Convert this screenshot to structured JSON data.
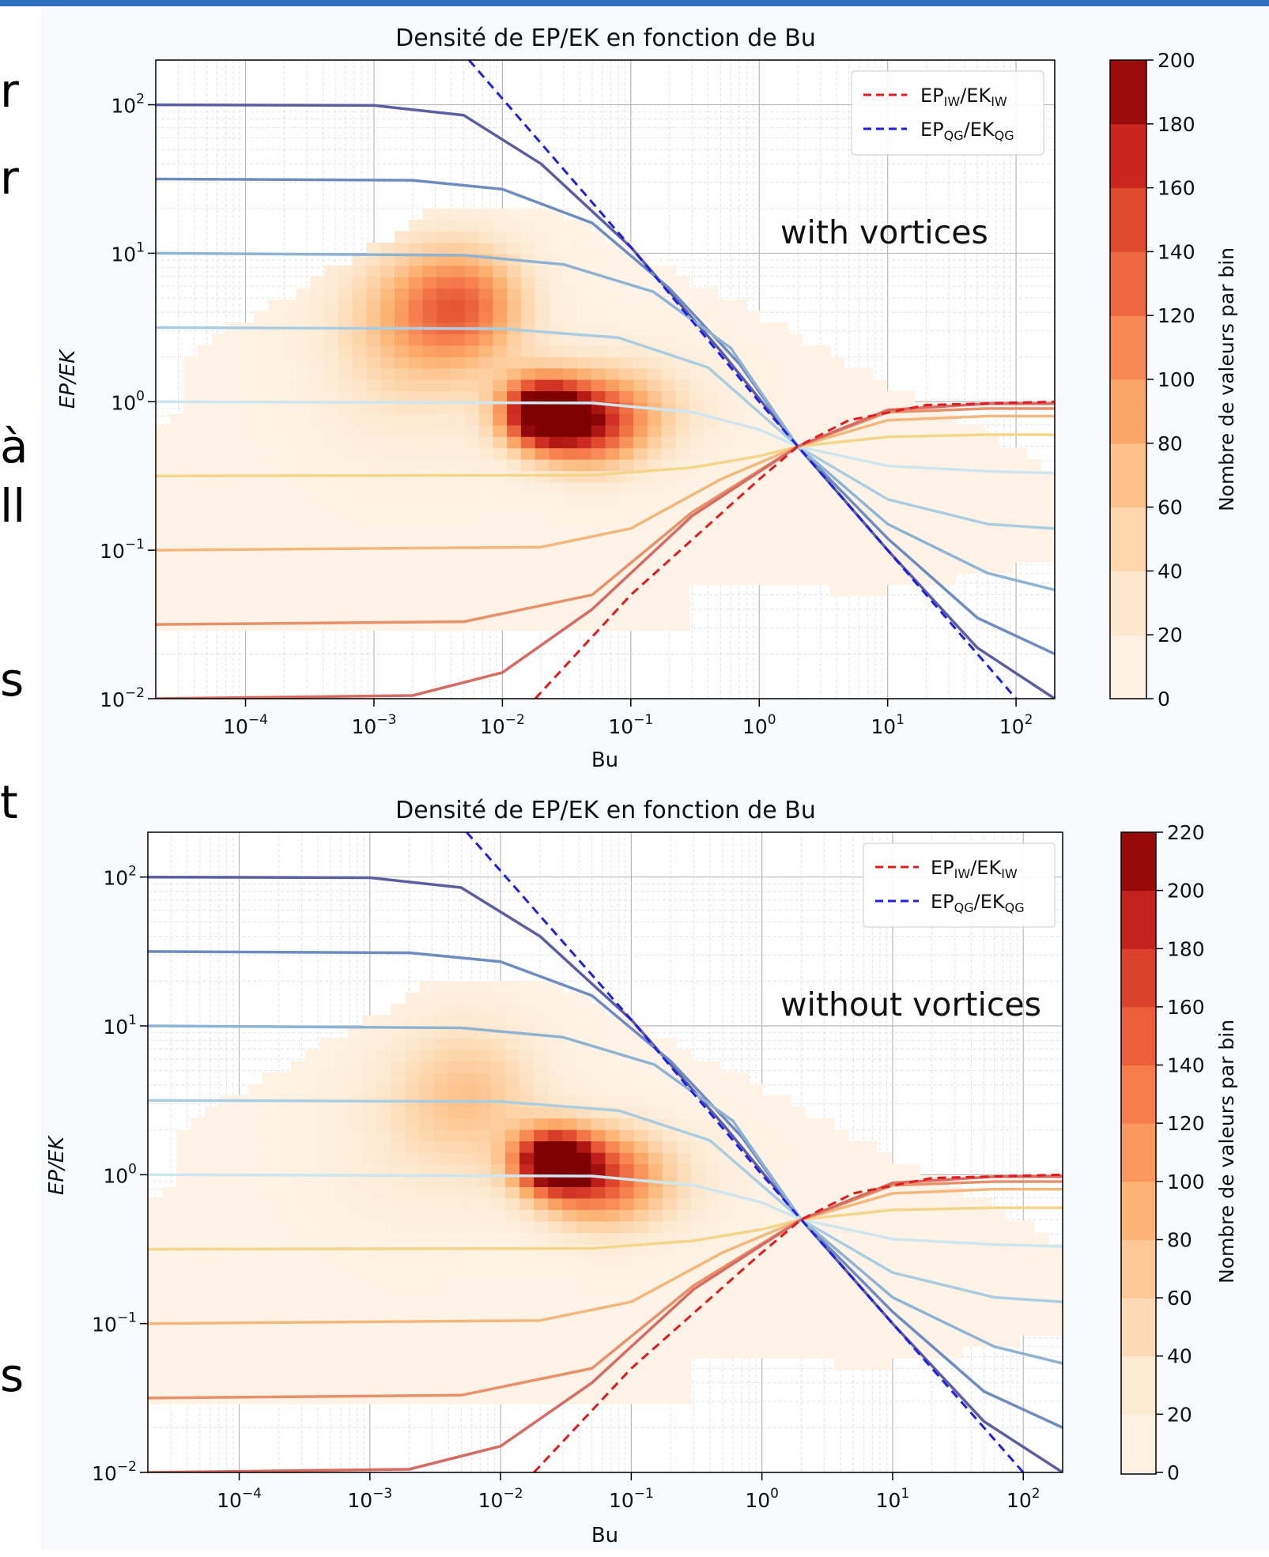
{
  "page": {
    "side_letters": [
      "r",
      "r",
      "à",
      "ll",
      "s",
      "t",
      "s"
    ]
  },
  "chart_data": [
    {
      "type": "heatmap",
      "title": "Densité de EP/EK en fonction de Bu",
      "xlabel": "Bu",
      "ylabel": "EP/EK",
      "xscale": "log",
      "yscale": "log",
      "xlim": [
        2e-05,
        200
      ],
      "ylim": [
        0.01,
        200
      ],
      "grid": true,
      "x_ticks": [
        "10^-4",
        "10^-3",
        "10^-2",
        "10^-1",
        "10^0",
        "10^1",
        "10^2"
      ],
      "y_ticks": [
        "10^-2",
        "10^-1",
        "10^0",
        "10^1",
        "10^2"
      ],
      "annotation": "with vortices",
      "legend": {
        "placement": "top-right",
        "entries": [
          {
            "base": "EP",
            "sub": "IW",
            "sep": "/",
            "base2": "EK",
            "sub2": "IW",
            "color": "#e41a1c",
            "style": "dashed"
          },
          {
            "base": "EP",
            "sub": "QG",
            "sep": "/",
            "base2": "EK",
            "sub2": "QG",
            "color": "#1f1fe6",
            "style": "dashed"
          }
        ]
      },
      "colorbar": {
        "label": "Nombre de valeurs par bin",
        "max": 200,
        "ticks": [
          0,
          20,
          40,
          60,
          80,
          100,
          120,
          140,
          160,
          180,
          200
        ]
      },
      "reference_lines": [
        {
          "name": "EP_IW/EK_IW",
          "color": "#e41a1c",
          "points": [
            [
              0.018,
              0.01
            ],
            [
              0.1,
              0.05
            ],
            [
              1,
              0.3
            ],
            [
              2,
              0.5
            ],
            [
              5,
              0.75
            ],
            [
              20,
              0.95
            ],
            [
              200,
              1.0
            ]
          ]
        },
        {
          "name": "EP_QG/EK_QG",
          "color": "#1f1fe6",
          "points": [
            [
              0.0055,
              200
            ],
            [
              0.1,
              11
            ],
            [
              1,
              1.0
            ],
            [
              2,
              0.5
            ],
            [
              10,
              0.1
            ],
            [
              100,
              0.01
            ]
          ]
        }
      ],
      "curves": [
        {
          "color": "#5b5ea0",
          "points": [
            [
              2e-05,
              100
            ],
            [
              0.001,
              99
            ],
            [
              0.005,
              85
            ],
            [
              0.02,
              40
            ],
            [
              0.1,
              11
            ],
            [
              0.5,
              2.2
            ],
            [
              2,
              0.5
            ],
            [
              10,
              0.1
            ],
            [
              50,
              0.022
            ],
            [
              200,
              0.01
            ]
          ]
        },
        {
          "color": "#6d8cc0",
          "points": [
            [
              2e-05,
              31.6
            ],
            [
              0.002,
              31
            ],
            [
              0.01,
              27
            ],
            [
              0.05,
              16
            ],
            [
              0.2,
              5.8
            ],
            [
              0.7,
              1.8
            ],
            [
              2,
              0.5
            ],
            [
              10,
              0.12
            ],
            [
              50,
              0.035
            ],
            [
              200,
              0.02
            ]
          ]
        },
        {
          "color": "#8eb3d3",
          "points": [
            [
              2e-05,
              10
            ],
            [
              0.005,
              9.7
            ],
            [
              0.03,
              8.4
            ],
            [
              0.15,
              5.5
            ],
            [
              0.6,
              2.3
            ],
            [
              2,
              0.5
            ],
            [
              10,
              0.15
            ],
            [
              60,
              0.07
            ],
            [
              200,
              0.054
            ]
          ]
        },
        {
          "color": "#aacde2",
          "points": [
            [
              2e-05,
              3.16
            ],
            [
              0.01,
              3.1
            ],
            [
              0.08,
              2.7
            ],
            [
              0.4,
              1.7
            ],
            [
              2,
              0.5
            ],
            [
              10,
              0.22
            ],
            [
              60,
              0.15
            ],
            [
              200,
              0.14
            ]
          ]
        },
        {
          "color": "#cde6ef",
          "points": [
            [
              2e-05,
              1.0
            ],
            [
              0.05,
              0.98
            ],
            [
              0.3,
              0.85
            ],
            [
              1,
              0.65
            ],
            [
              2,
              0.5
            ],
            [
              10,
              0.37
            ],
            [
              60,
              0.34
            ],
            [
              200,
              0.33
            ]
          ]
        },
        {
          "color": "#f4d58a",
          "points": [
            [
              2e-05,
              0.316
            ],
            [
              0.05,
              0.32
            ],
            [
              0.3,
              0.36
            ],
            [
              1,
              0.43
            ],
            [
              2,
              0.5
            ],
            [
              10,
              0.58
            ],
            [
              60,
              0.6
            ],
            [
              200,
              0.6
            ]
          ]
        },
        {
          "color": "#f3b77b",
          "points": [
            [
              2e-05,
              0.1
            ],
            [
              0.02,
              0.105
            ],
            [
              0.1,
              0.14
            ],
            [
              0.5,
              0.3
            ],
            [
              2,
              0.5
            ],
            [
              10,
              0.75
            ],
            [
              60,
              0.8
            ],
            [
              200,
              0.8
            ]
          ]
        },
        {
          "color": "#e89069",
          "points": [
            [
              2e-05,
              0.0316
            ],
            [
              0.005,
              0.033
            ],
            [
              0.05,
              0.05
            ],
            [
              0.3,
              0.18
            ],
            [
              2,
              0.5
            ],
            [
              10,
              0.85
            ],
            [
              60,
              0.9
            ],
            [
              200,
              0.9
            ]
          ]
        },
        {
          "color": "#d86a62",
          "points": [
            [
              2e-05,
              0.01
            ],
            [
              0.002,
              0.0105
            ],
            [
              0.01,
              0.015
            ],
            [
              0.05,
              0.04
            ],
            [
              0.3,
              0.17
            ],
            [
              2,
              0.5
            ],
            [
              10,
              0.88
            ],
            [
              60,
              0.97
            ],
            [
              200,
              0.97
            ]
          ]
        }
      ],
      "density_blobs": [
        {
          "x": 0.005,
          "y": 4.5,
          "value": 110,
          "sx": 0.35,
          "sy": 0.28
        },
        {
          "x": 0.02,
          "y": 0.85,
          "value": 200,
          "sx": 0.22,
          "sy": 0.16
        },
        {
          "x": 0.045,
          "y": 0.7,
          "value": 120,
          "sx": 0.3,
          "sy": 0.2
        },
        {
          "x": 0.08,
          "y": 0.9,
          "value": 60,
          "sx": 0.45,
          "sy": 0.25
        },
        {
          "x": 0.0015,
          "y": 4.0,
          "value": 40,
          "sx": 0.4,
          "sy": 0.35
        },
        {
          "x": 0.002,
          "y": 1.5,
          "value": 25,
          "sx": 0.5,
          "sy": 0.4
        }
      ]
    },
    {
      "type": "heatmap",
      "title": "Densité de EP/EK en fonction de Bu",
      "xlabel": "Bu",
      "ylabel": "EP/EK",
      "xscale": "log",
      "yscale": "log",
      "xlim": [
        2e-05,
        200
      ],
      "ylim": [
        0.01,
        200
      ],
      "grid": true,
      "x_ticks": [
        "10^-4",
        "10^-3",
        "10^-2",
        "10^-1",
        "10^0",
        "10^1",
        "10^2"
      ],
      "y_ticks": [
        "10^-2",
        "10^-1",
        "10^0",
        "10^1",
        "10^2"
      ],
      "annotation": "without vortices",
      "legend": {
        "placement": "top-right",
        "entries": [
          {
            "base": "EP",
            "sub": "IW",
            "sep": "/",
            "base2": "EK",
            "sub2": "IW",
            "color": "#e41a1c",
            "style": "dashed"
          },
          {
            "base": "EP",
            "sub": "QG",
            "sep": "/",
            "base2": "EK",
            "sub2": "QG",
            "color": "#1f1fe6",
            "style": "dashed"
          }
        ]
      },
      "colorbar": {
        "label": "Nombre de valeurs par bin",
        "max": 220,
        "ticks": [
          0,
          20,
          40,
          60,
          80,
          100,
          120,
          140,
          160,
          180,
          200,
          220
        ]
      },
      "reference_lines": [
        {
          "name": "EP_IW/EK_IW",
          "color": "#e41a1c",
          "points": [
            [
              0.018,
              0.01
            ],
            [
              0.1,
              0.05
            ],
            [
              1,
              0.3
            ],
            [
              2,
              0.5
            ],
            [
              5,
              0.75
            ],
            [
              20,
              0.95
            ],
            [
              200,
              1.0
            ]
          ]
        },
        {
          "name": "EP_QG/EK_QG",
          "color": "#1f1fe6",
          "points": [
            [
              0.0055,
              200
            ],
            [
              0.1,
              11
            ],
            [
              1,
              1.0
            ],
            [
              2,
              0.5
            ],
            [
              10,
              0.1
            ],
            [
              100,
              0.01
            ]
          ]
        }
      ],
      "curves": [
        {
          "color": "#5b5ea0",
          "points": [
            [
              2e-05,
              100
            ],
            [
              0.001,
              99
            ],
            [
              0.005,
              85
            ],
            [
              0.02,
              40
            ],
            [
              0.1,
              11
            ],
            [
              0.5,
              2.2
            ],
            [
              2,
              0.5
            ],
            [
              10,
              0.1
            ],
            [
              50,
              0.022
            ],
            [
              200,
              0.01
            ]
          ]
        },
        {
          "color": "#6d8cc0",
          "points": [
            [
              2e-05,
              31.6
            ],
            [
              0.002,
              31
            ],
            [
              0.01,
              27
            ],
            [
              0.05,
              16
            ],
            [
              0.2,
              5.8
            ],
            [
              0.7,
              1.8
            ],
            [
              2,
              0.5
            ],
            [
              10,
              0.12
            ],
            [
              50,
              0.035
            ],
            [
              200,
              0.02
            ]
          ]
        },
        {
          "color": "#8eb3d3",
          "points": [
            [
              2e-05,
              10
            ],
            [
              0.005,
              9.7
            ],
            [
              0.03,
              8.4
            ],
            [
              0.15,
              5.5
            ],
            [
              0.6,
              2.3
            ],
            [
              2,
              0.5
            ],
            [
              10,
              0.15
            ],
            [
              60,
              0.07
            ],
            [
              200,
              0.054
            ]
          ]
        },
        {
          "color": "#aacde2",
          "points": [
            [
              2e-05,
              3.16
            ],
            [
              0.01,
              3.1
            ],
            [
              0.08,
              2.7
            ],
            [
              0.4,
              1.7
            ],
            [
              2,
              0.5
            ],
            [
              10,
              0.22
            ],
            [
              60,
              0.15
            ],
            [
              200,
              0.14
            ]
          ]
        },
        {
          "color": "#cde6ef",
          "points": [
            [
              2e-05,
              1.0
            ],
            [
              0.05,
              0.98
            ],
            [
              0.3,
              0.85
            ],
            [
              1,
              0.65
            ],
            [
              2,
              0.5
            ],
            [
              10,
              0.37
            ],
            [
              60,
              0.34
            ],
            [
              200,
              0.33
            ]
          ]
        },
        {
          "color": "#f4d58a",
          "points": [
            [
              2e-05,
              0.316
            ],
            [
              0.05,
              0.32
            ],
            [
              0.3,
              0.36
            ],
            [
              1,
              0.43
            ],
            [
              2,
              0.5
            ],
            [
              10,
              0.58
            ],
            [
              60,
              0.6
            ],
            [
              200,
              0.6
            ]
          ]
        },
        {
          "color": "#f3b77b",
          "points": [
            [
              2e-05,
              0.1
            ],
            [
              0.02,
              0.105
            ],
            [
              0.1,
              0.14
            ],
            [
              0.5,
              0.3
            ],
            [
              2,
              0.5
            ],
            [
              10,
              0.75
            ],
            [
              60,
              0.8
            ],
            [
              200,
              0.8
            ]
          ]
        },
        {
          "color": "#e89069",
          "points": [
            [
              2e-05,
              0.0316
            ],
            [
              0.005,
              0.033
            ],
            [
              0.05,
              0.05
            ],
            [
              0.3,
              0.18
            ],
            [
              2,
              0.5
            ],
            [
              10,
              0.85
            ],
            [
              60,
              0.9
            ],
            [
              200,
              0.9
            ]
          ]
        },
        {
          "color": "#d86a62",
          "points": [
            [
              2e-05,
              0.01
            ],
            [
              0.002,
              0.0105
            ],
            [
              0.01,
              0.015
            ],
            [
              0.05,
              0.04
            ],
            [
              0.3,
              0.17
            ],
            [
              2,
              0.5
            ],
            [
              10,
              0.88
            ],
            [
              60,
              0.97
            ],
            [
              200,
              0.97
            ]
          ]
        }
      ],
      "density_blobs": [
        {
          "x": 0.025,
          "y": 1.25,
          "value": 220,
          "sx": 0.2,
          "sy": 0.14
        },
        {
          "x": 0.05,
          "y": 1.0,
          "value": 120,
          "sx": 0.32,
          "sy": 0.22
        },
        {
          "x": 0.006,
          "y": 3.5,
          "value": 60,
          "sx": 0.4,
          "sy": 0.35
        },
        {
          "x": 0.1,
          "y": 0.9,
          "value": 50,
          "sx": 0.45,
          "sy": 0.25
        },
        {
          "x": 0.002,
          "y": 2.0,
          "value": 20,
          "sx": 0.5,
          "sy": 0.45
        }
      ]
    }
  ]
}
